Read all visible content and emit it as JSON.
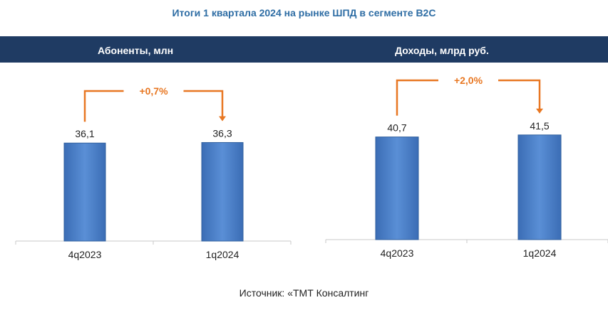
{
  "title": "Итоги 1 квартала 2024 на рынке ШПД в сегменте B2C",
  "source": "Источник: «ТМТ Консалтинг",
  "colors": {
    "bar": "#4a7fc8",
    "header": "#1f3b63",
    "accent": "#e87722",
    "title": "#2e6da4"
  },
  "chart_data": [
    {
      "type": "bar",
      "title": "Абоненты, млн",
      "categories": [
        "4q2023",
        "1q2024"
      ],
      "values": [
        36.1,
        36.3
      ],
      "value_labels": [
        "36,1",
        "36,3"
      ],
      "change_label": "+0,7%",
      "ylim": [
        0,
        60
      ]
    },
    {
      "type": "bar",
      "title": "Доходы, млрд руб.",
      "categories": [
        "4q2023",
        "1q2024"
      ],
      "values": [
        40.7,
        41.5
      ],
      "value_labels": [
        "40,7",
        "41,5"
      ],
      "change_label": "+2,0%",
      "ylim": [
        0,
        64
      ]
    }
  ]
}
